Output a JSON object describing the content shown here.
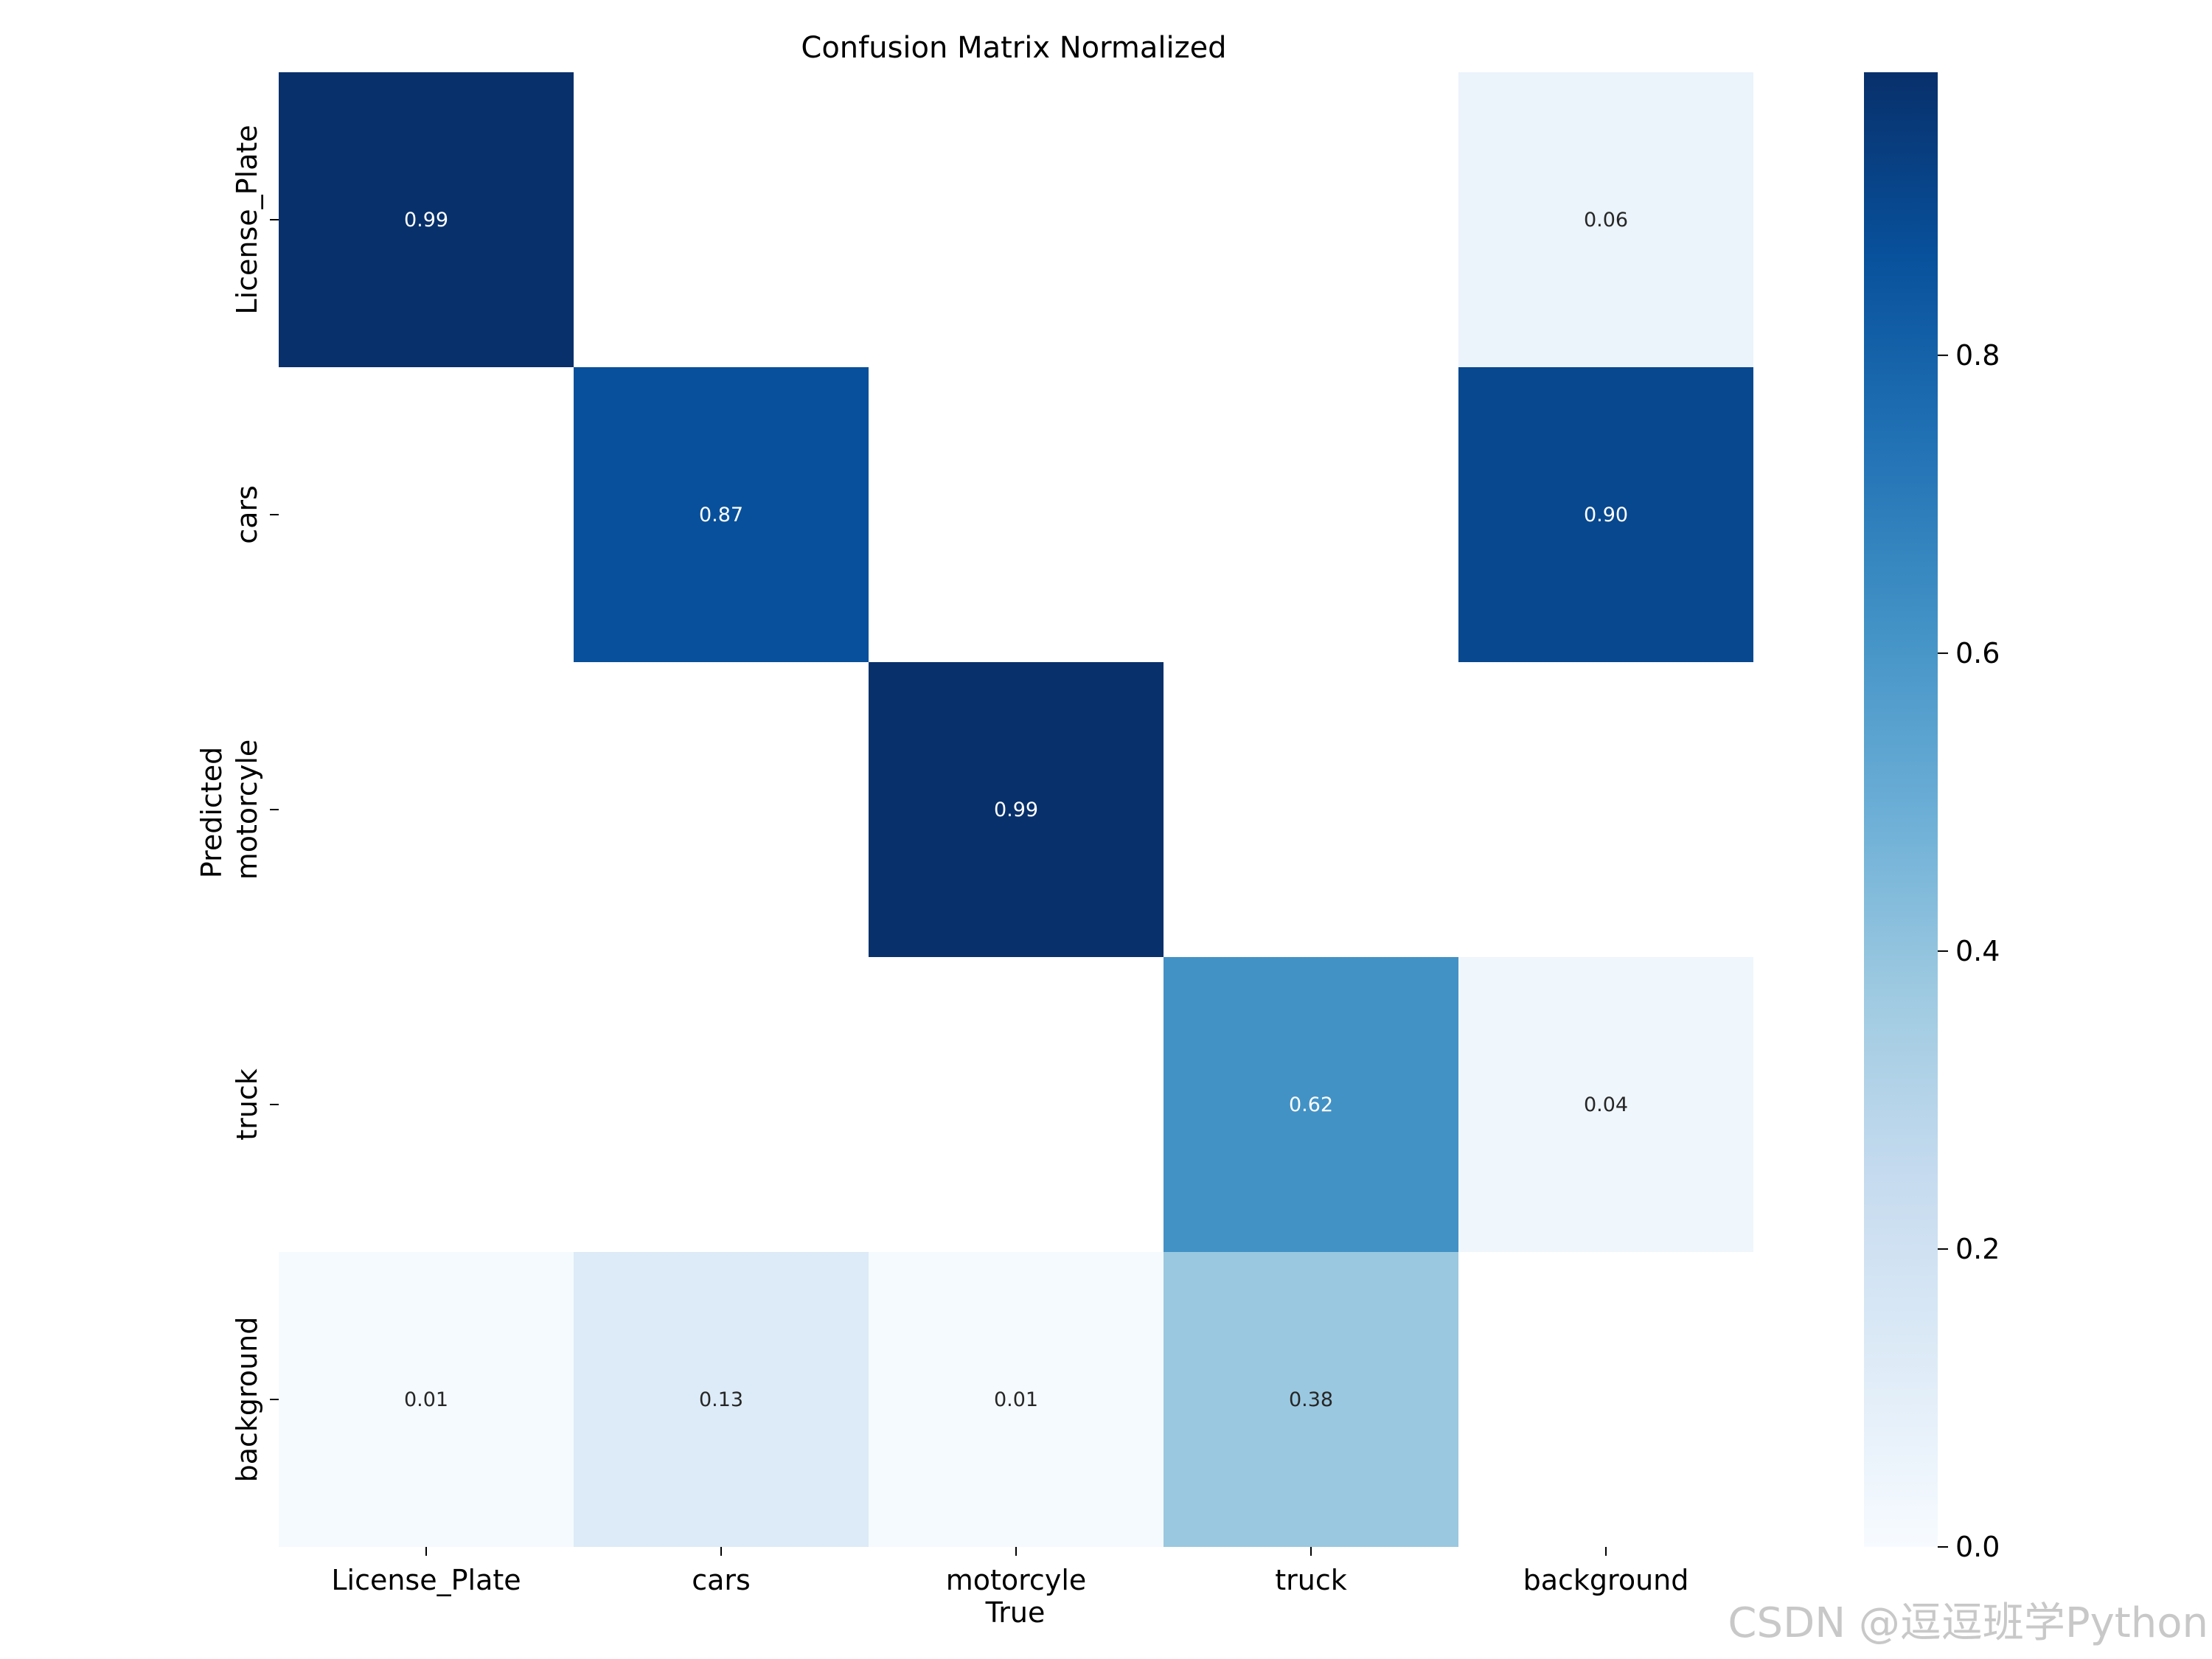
{
  "chart_data": {
    "type": "heatmap",
    "title": "Confusion Matrix Normalized",
    "xlabel": "True",
    "ylabel": "Predicted",
    "x_categories": [
      "License_Plate",
      "cars",
      "motorcyle",
      "truck",
      "background"
    ],
    "y_categories": [
      "License_Plate",
      "cars",
      "motorcyle",
      "truck",
      "background"
    ],
    "values": [
      [
        0.99,
        null,
        null,
        null,
        0.06
      ],
      [
        null,
        0.87,
        null,
        null,
        0.9
      ],
      [
        null,
        null,
        0.99,
        null,
        null
      ],
      [
        null,
        null,
        null,
        0.62,
        0.04
      ],
      [
        0.01,
        0.13,
        0.01,
        0.38,
        null
      ]
    ],
    "value_labels": [
      [
        "0.99",
        "",
        "",
        "",
        "0.06"
      ],
      [
        "",
        "0.87",
        "",
        "",
        "0.90"
      ],
      [
        "",
        "",
        "0.99",
        "",
        ""
      ],
      [
        "",
        "",
        "",
        "0.62",
        "0.04"
      ],
      [
        "0.01",
        "0.13",
        "0.01",
        "0.38",
        ""
      ]
    ],
    "colormap": "Blues",
    "colorbar": {
      "range": [
        0.0,
        0.99
      ],
      "ticks": [
        0.0,
        0.2,
        0.4,
        0.6,
        0.8
      ],
      "tick_labels": [
        "0.0",
        "0.2",
        "0.4",
        "0.6",
        "0.8"
      ]
    },
    "grid": false,
    "legend": "colorbar-right"
  },
  "watermark": "CSDN @逗逗班学Python"
}
